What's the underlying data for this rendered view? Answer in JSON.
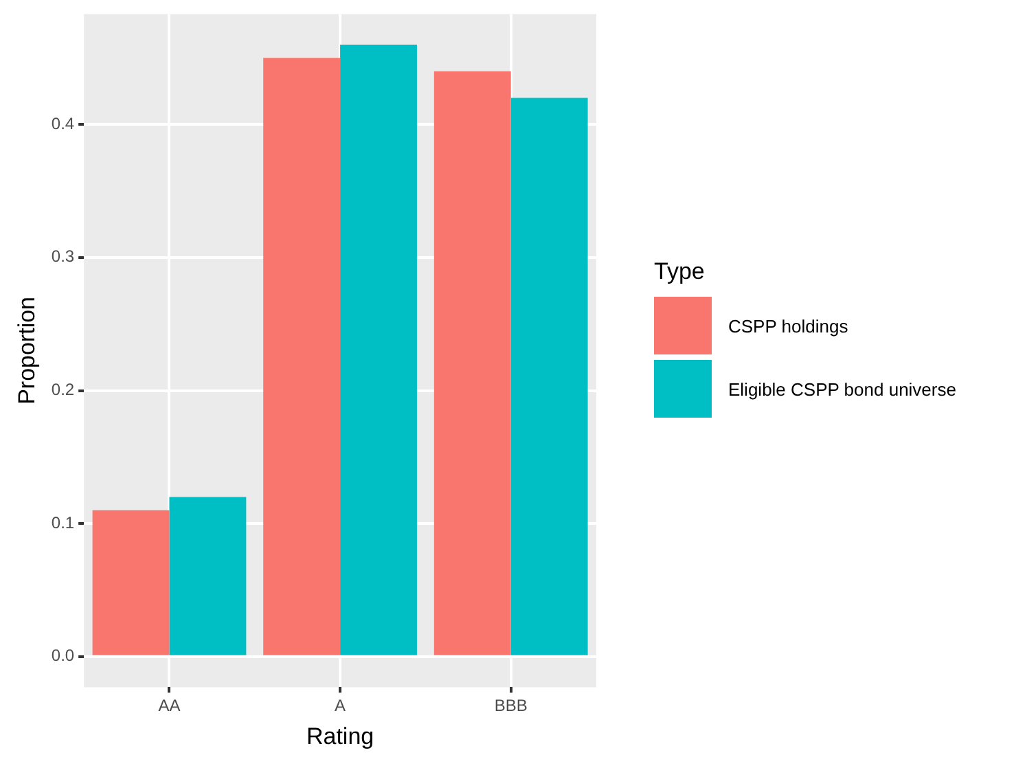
{
  "chart_data": {
    "type": "bar",
    "xlabel": "Rating",
    "ylabel": "Proportion",
    "legend_title": "Type",
    "categories": [
      "AA",
      "A",
      "BBB"
    ],
    "series": [
      {
        "name": "CSPP holdings",
        "color": "#f8766d",
        "values": [
          0.11,
          0.45,
          0.44
        ]
      },
      {
        "name": "Eligible CSPP bond universe",
        "color": "#00bfc4",
        "values": [
          0.12,
          0.46,
          0.42
        ]
      }
    ],
    "ylim": [
      -0.023,
      0.483
    ],
    "yticks": [
      {
        "value": 0,
        "label": "0.0"
      },
      0.1,
      0.2,
      0.3,
      0.4
    ],
    "grid": true,
    "legend": "right"
  }
}
